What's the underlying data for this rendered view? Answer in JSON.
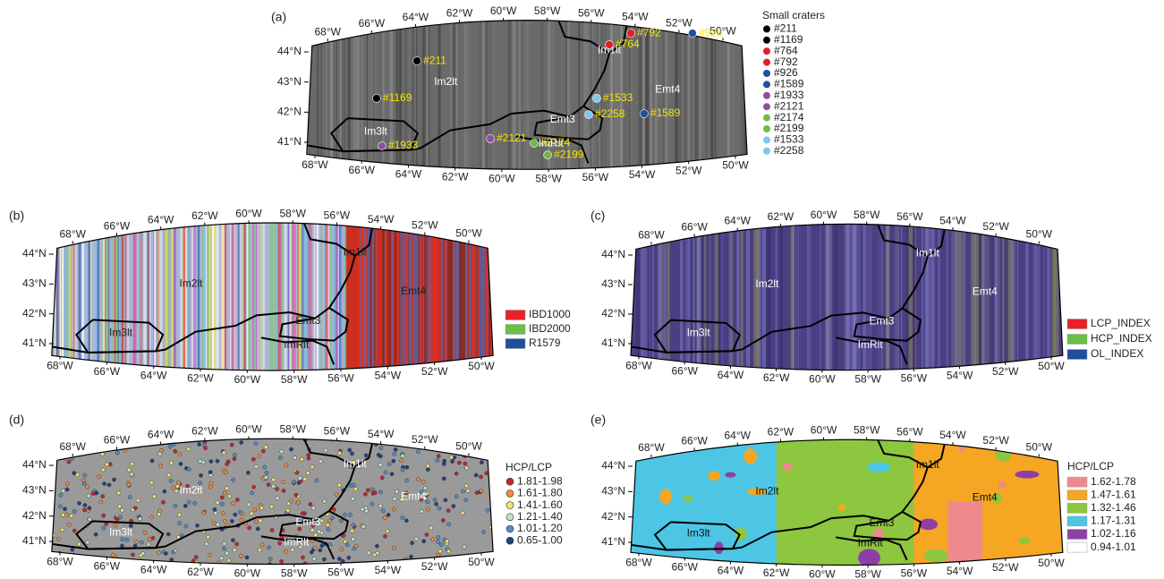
{
  "lon_ticks": [
    {
      "value": -68,
      "label": "68°W"
    },
    {
      "value": -66,
      "label": "66°W"
    },
    {
      "value": -64,
      "label": "64°W"
    },
    {
      "value": -62,
      "label": "62°W"
    },
    {
      "value": -60,
      "label": "60°W"
    },
    {
      "value": -58,
      "label": "58°W"
    },
    {
      "value": -56,
      "label": "56°W"
    },
    {
      "value": -54,
      "label": "54°W"
    },
    {
      "value": -52,
      "label": "52°W"
    },
    {
      "value": -50,
      "label": "50°W"
    }
  ],
  "lat_ticks": [
    {
      "value": 44,
      "label": "44°N"
    },
    {
      "value": 43,
      "label": "43°N"
    },
    {
      "value": 42,
      "label": "42°N"
    },
    {
      "value": 41,
      "label": "41°N"
    }
  ],
  "units": [
    "Im1lt",
    "Im2lt",
    "Im3lt",
    "Emt4",
    "Emt3",
    "ImRlt"
  ],
  "panels": [
    {
      "label": "(a)",
      "legend": {
        "title": "Small craters",
        "marker": "dot",
        "items": [
          {
            "name": "#211",
            "color": "#000000",
            "lon": -63.63,
            "lat": 43.7
          },
          {
            "name": "#1169",
            "color": "#000000",
            "lon": -65.36,
            "lat": 42.46
          },
          {
            "name": "#764",
            "color": "#e41e25",
            "lon": -55.4,
            "lat": 44.24
          },
          {
            "name": "#792",
            "color": "#e41e25",
            "lon": -54.48,
            "lat": 44.62
          },
          {
            "name": "#926",
            "color": "#1f4fa0",
            "lon": -51.84,
            "lat": 44.62
          },
          {
            "name": "#1589",
            "color": "#1f4fa0",
            "lon": -53.91,
            "lat": 41.95
          },
          {
            "name": "#1933",
            "color": "#8e4fa0",
            "lon": -65.13,
            "lat": 40.88
          },
          {
            "name": "#2121",
            "color": "#8e4fa0",
            "lon": -60.49,
            "lat": 41.12
          },
          {
            "name": "#2174",
            "color": "#74b843",
            "lon": -58.62,
            "lat": 40.97
          },
          {
            "name": "#2199",
            "color": "#74b843",
            "lon": -58.04,
            "lat": 40.58
          },
          {
            "name": "#1533",
            "color": "#7ec8e8",
            "lon": -55.94,
            "lat": 42.46
          },
          {
            "name": "#2258",
            "color": "#7ec8e8",
            "lon": -56.28,
            "lat": 41.92
          }
        ]
      }
    },
    {
      "label": "(b)",
      "legend": {
        "marker": "swatch",
        "items": [
          {
            "name": "IBD1000",
            "color": "#e8202a"
          },
          {
            "name": "IBD2000",
            "color": "#6abf45"
          },
          {
            "name": "R1579",
            "color": "#1f4e9c"
          }
        ]
      }
    },
    {
      "label": "(c)",
      "legend": {
        "marker": "swatch",
        "items": [
          {
            "name": "LCP_INDEX",
            "color": "#e8202a"
          },
          {
            "name": "HCP_INDEX",
            "color": "#6abf45"
          },
          {
            "name": "OL_INDEX",
            "color": "#1f4e9c"
          }
        ]
      }
    },
    {
      "label": "(d)",
      "legend": {
        "title": "HCP/LCP",
        "marker": "dot",
        "items": [
          {
            "name": "1.81-1.98",
            "color": "#c0282d"
          },
          {
            "name": "1.61-1.80",
            "color": "#f08a3c"
          },
          {
            "name": "1.41-1.60",
            "color": "#f3e26a"
          },
          {
            "name": "1.21-1.40",
            "color": "#bfe3c9"
          },
          {
            "name": "1.01-1.20",
            "color": "#4f8fc6"
          },
          {
            "name": "0.65-1.00",
            "color": "#23427e"
          }
        ]
      }
    },
    {
      "label": "(e)",
      "legend": {
        "title": "HCP/LCP",
        "marker": "swatch",
        "items": [
          {
            "name": "1.62-1.78",
            "color": "#f0898d"
          },
          {
            "name": "1.47-1.61",
            "color": "#f5a623"
          },
          {
            "name": "1.32-1.46",
            "color": "#8dc63f"
          },
          {
            "name": "1.17-1.31",
            "color": "#4dc6e6"
          },
          {
            "name": "1.02-1.16",
            "color": "#8e3fa6"
          },
          {
            "name": "0.94-1.01",
            "color": "#ffffff"
          }
        ]
      }
    }
  ]
}
